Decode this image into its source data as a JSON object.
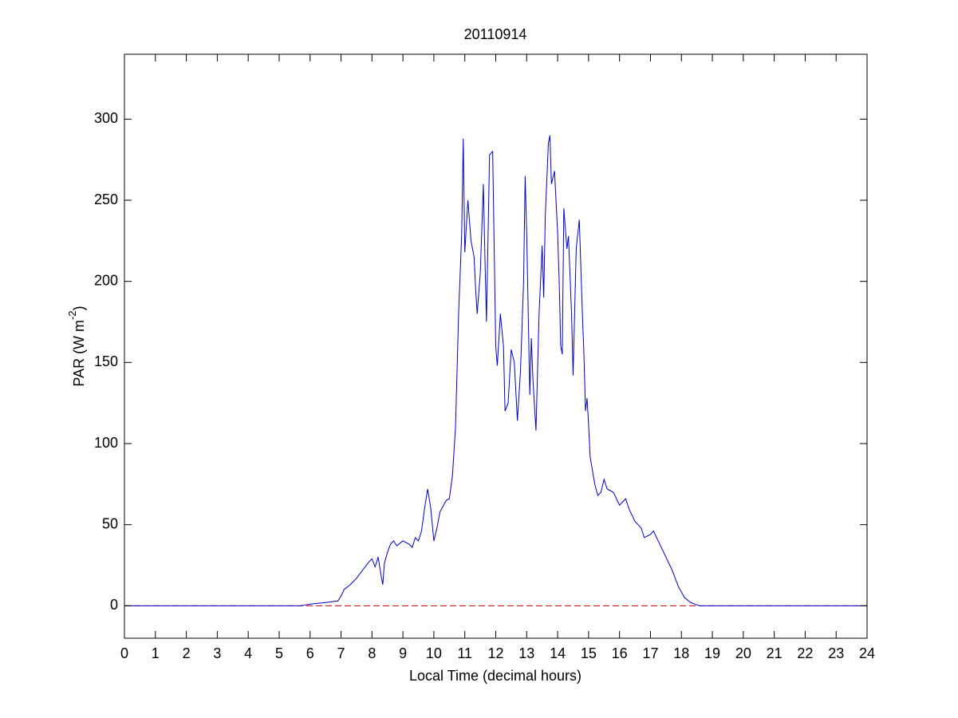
{
  "chart_data": {
    "type": "line",
    "title": "20110914",
    "xlabel": "Local Time (decimal hours)",
    "ylabel": [
      "PAR (W m",
      "-2",
      ")"
    ],
    "xlim": [
      0,
      24
    ],
    "ylim": [
      -20,
      340
    ],
    "xticks": [
      0,
      1,
      2,
      3,
      4,
      5,
      6,
      7,
      8,
      9,
      10,
      11,
      12,
      13,
      14,
      15,
      16,
      17,
      18,
      19,
      20,
      21,
      22,
      23,
      24
    ],
    "yticks": [
      0,
      50,
      100,
      150,
      200,
      250,
      300
    ],
    "reference_line": {
      "y": 0,
      "color": "#cc0000",
      "dashed": true
    },
    "series": [
      {
        "color": "#0000cc",
        "x": [
          0,
          5.7,
          6.0,
          6.5,
          6.9,
          7.0,
          7.1,
          7.3,
          7.5,
          7.7,
          7.9,
          8.0,
          8.1,
          8.2,
          8.3,
          8.35,
          8.4,
          8.5,
          8.6,
          8.7,
          8.8,
          9.0,
          9.2,
          9.3,
          9.4,
          9.5,
          9.6,
          9.7,
          9.8,
          9.9,
          10.0,
          10.1,
          10.2,
          10.4,
          10.5,
          10.6,
          10.7,
          10.8,
          10.9,
          10.95,
          11.0,
          11.1,
          11.2,
          11.3,
          11.35,
          11.4,
          11.5,
          11.6,
          11.65,
          11.7,
          11.8,
          11.9,
          12.0,
          12.05,
          12.15,
          12.25,
          12.3,
          12.4,
          12.5,
          12.6,
          12.7,
          12.8,
          12.9,
          12.95,
          13.0,
          13.1,
          13.15,
          13.2,
          13.3,
          13.4,
          13.5,
          13.55,
          13.6,
          13.7,
          13.75,
          13.8,
          13.9,
          14.0,
          14.05,
          14.1,
          14.15,
          14.2,
          14.3,
          14.35,
          14.45,
          14.5,
          14.6,
          14.7,
          14.8,
          14.85,
          14.9,
          14.95,
          15.0,
          15.05,
          15.2,
          15.3,
          15.4,
          15.5,
          15.6,
          15.8,
          16.0,
          16.2,
          16.3,
          16.5,
          16.7,
          16.8,
          17.0,
          17.1,
          17.3,
          17.5,
          17.7,
          17.9,
          18.1,
          18.3,
          18.5,
          18.6,
          24
        ],
        "values": [
          0,
          0,
          1,
          2,
          3,
          6,
          10,
          13,
          17,
          22,
          27,
          29,
          24,
          30,
          18,
          13,
          26,
          33,
          38,
          40,
          37,
          40,
          38,
          36,
          42,
          40,
          46,
          60,
          72,
          60,
          40,
          48,
          58,
          65,
          66,
          80,
          110,
          180,
          230,
          288,
          218,
          250,
          225,
          215,
          195,
          180,
          205,
          260,
          215,
          175,
          278,
          280,
          160,
          148,
          180,
          160,
          120,
          125,
          158,
          150,
          114,
          145,
          200,
          265,
          230,
          130,
          165,
          140,
          108,
          180,
          222,
          190,
          240,
          285,
          290,
          260,
          268,
          230,
          200,
          160,
          155,
          245,
          220,
          228,
          180,
          142,
          220,
          238,
          180,
          155,
          120,
          128,
          112,
          92,
          75,
          68,
          70,
          78,
          72,
          70,
          62,
          66,
          60,
          52,
          48,
          42,
          44,
          46,
          38,
          30,
          22,
          12,
          5,
          2,
          0.5,
          0,
          0
        ]
      }
    ]
  }
}
